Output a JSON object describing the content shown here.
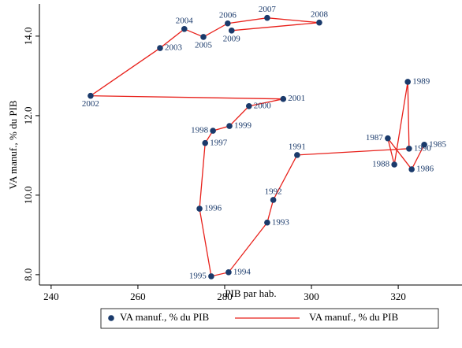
{
  "chart_data": {
    "type": "connected_scatter",
    "xlabel": "PIB par hab.",
    "ylabel": "VA manuf., % du PIB",
    "point_labels": [
      "1985",
      "1986",
      "1987",
      "1988",
      "1989",
      "1990",
      "1991",
      "1992",
      "1993",
      "1994",
      "1995",
      "1996",
      "1997",
      "1998",
      "1999",
      "2000",
      "2001",
      "2002",
      "2003",
      "2004",
      "2005",
      "2006",
      "2007",
      "2008",
      "2009"
    ],
    "x": [
      326.0,
      323.1,
      317.6,
      319.1,
      322.2,
      322.5,
      296.7,
      291.2,
      289.8,
      280.9,
      276.9,
      274.2,
      275.5,
      277.3,
      281.1,
      285.6,
      293.5,
      249.1,
      265.1,
      270.7,
      275.1,
      280.7,
      289.8,
      301.8,
      281.6
    ],
    "y": [
      11.27,
      10.65,
      11.43,
      10.77,
      12.85,
      11.17,
      11.01,
      9.88,
      9.31,
      8.06,
      7.96,
      9.66,
      11.31,
      11.62,
      11.74,
      12.24,
      12.42,
      12.5,
      13.7,
      14.18,
      13.98,
      14.32,
      14.46,
      14.34,
      14.14
    ],
    "marker_color": "#1a3a6b",
    "line_color": "#e8201a",
    "legend": [
      "VA manuf., % du PIB",
      "VA manuf., % du PIB"
    ],
    "xlim": [
      237.3,
      334.7
    ],
    "ylim": [
      7.74,
      14.81
    ],
    "xticks": [
      240,
      260,
      280,
      300,
      320
    ],
    "yticks": [
      {
        "value": 8,
        "label": "8.0"
      },
      {
        "value": 10,
        "label": "10.0"
      },
      {
        "value": 12,
        "label": "12.0"
      },
      {
        "value": 14,
        "label": "14.0"
      }
    ]
  }
}
